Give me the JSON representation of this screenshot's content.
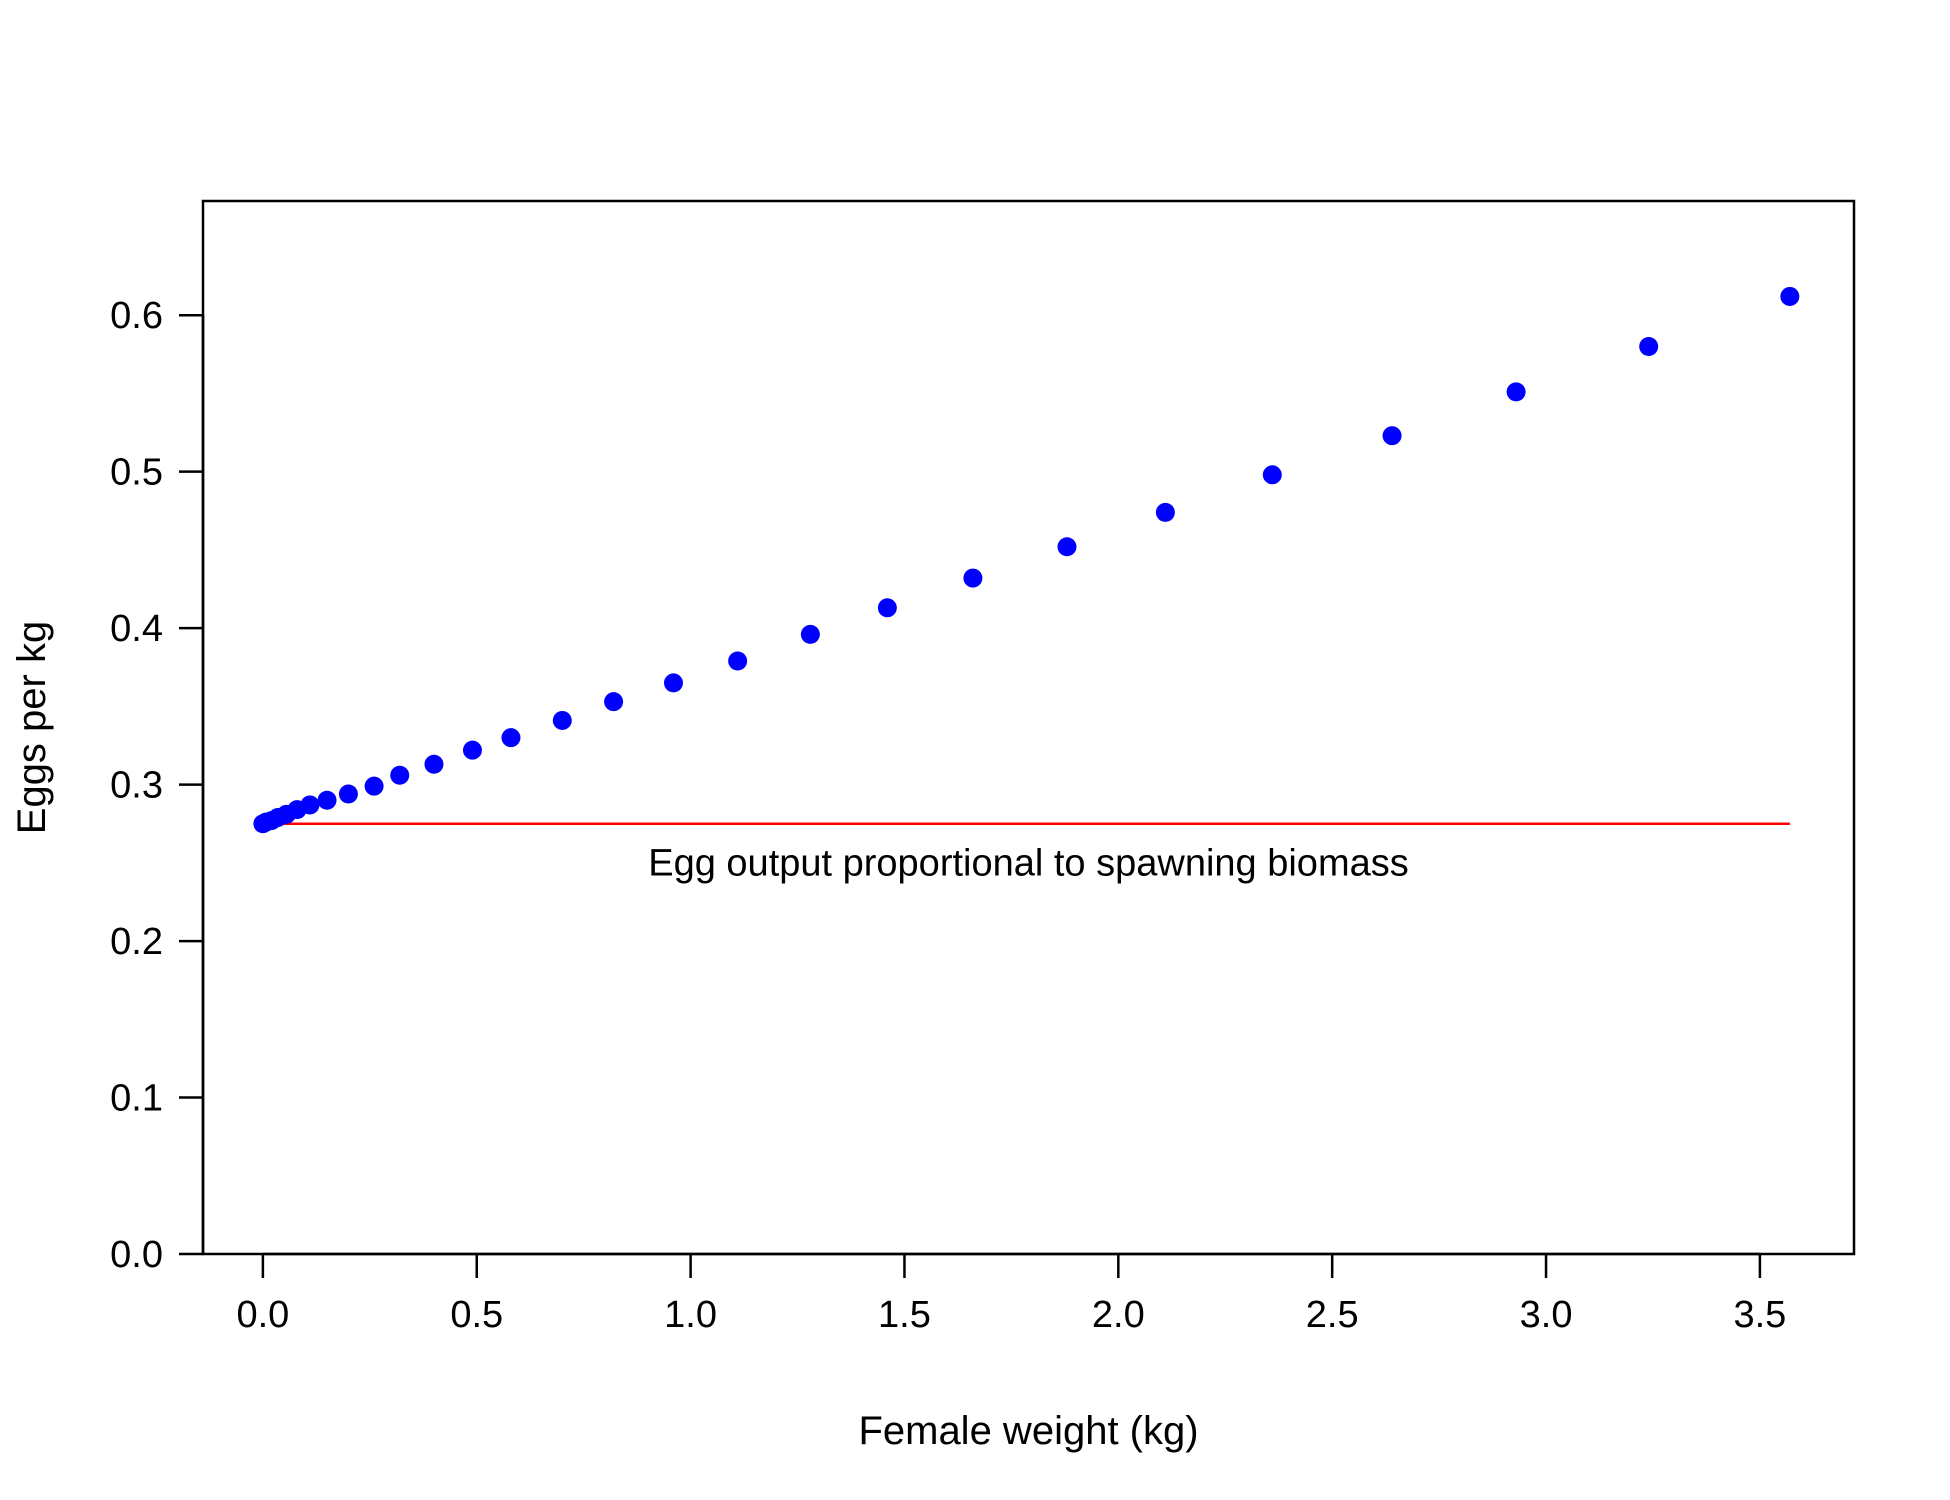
{
  "chart_data": {
    "type": "scatter",
    "title": "",
    "xlabel": "Female weight (kg)",
    "ylabel": "Eggs per kg",
    "xlim": [
      -0.14,
      3.72
    ],
    "ylim": [
      0.0,
      0.673
    ],
    "x_ticks": [
      0.0,
      0.5,
      1.0,
      1.5,
      2.0,
      2.5,
      3.0,
      3.5
    ],
    "x_tick_labels": [
      "0.0",
      "0.5",
      "1.0",
      "1.5",
      "2.0",
      "2.5",
      "3.0",
      "3.5"
    ],
    "y_ticks": [
      0.0,
      0.1,
      0.2,
      0.3,
      0.4,
      0.5,
      0.6
    ],
    "y_tick_labels": [
      "0.0",
      "0.1",
      "0.2",
      "0.3",
      "0.4",
      "0.5",
      "0.6"
    ],
    "grid": false,
    "series": [
      {
        "color": "#0000ff",
        "marker": "filled-circle",
        "x": [
          0.0,
          0.007,
          0.02,
          0.035,
          0.055,
          0.08,
          0.11,
          0.15,
          0.2,
          0.26,
          0.32,
          0.4,
          0.49,
          0.58,
          0.7,
          0.82,
          0.96,
          1.11,
          1.28,
          1.46,
          1.66,
          1.88,
          2.11,
          2.36,
          2.64,
          2.93,
          3.24,
          3.57
        ],
        "y": [
          0.275,
          0.276,
          0.277,
          0.279,
          0.281,
          0.284,
          0.287,
          0.29,
          0.294,
          0.299,
          0.306,
          0.313,
          0.322,
          0.33,
          0.341,
          0.353,
          0.365,
          0.379,
          0.396,
          0.413,
          0.432,
          0.452,
          0.474,
          0.498,
          0.523,
          0.551,
          0.58,
          0.612
        ]
      }
    ],
    "reference_line": {
      "color": "#ff0000",
      "x": [
        0.0,
        3.57
      ],
      "y": [
        0.275,
        0.275
      ]
    },
    "annotation": {
      "text": "Egg output proportional to spawning biomass",
      "x": 1.79,
      "y": 0.242
    }
  }
}
